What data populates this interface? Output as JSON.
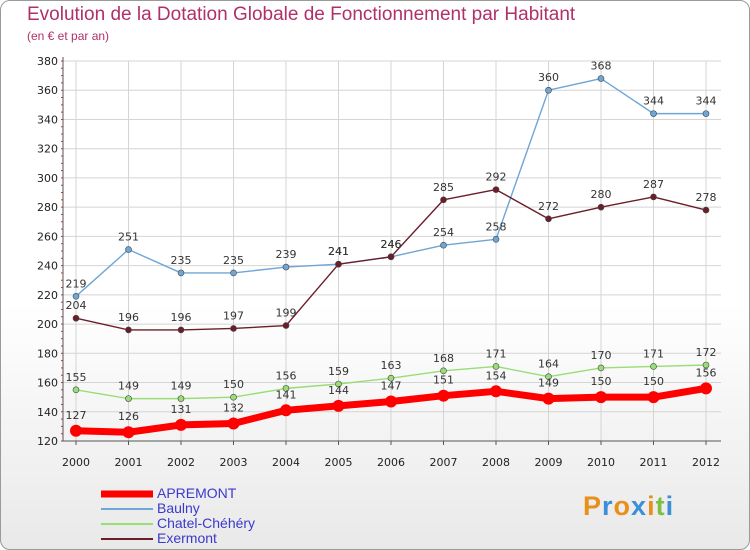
{
  "header": {
    "title": "Evolution de la Dotation Globale de Fonctionnement par Habitant",
    "subtitle": "(en € et par an)"
  },
  "logo": {
    "text": "Proxiti"
  },
  "chart_data": {
    "type": "line",
    "title": "Evolution de la Dotation Globale de Fonctionnement par Habitant",
    "subtitle": "(en € et par an)",
    "xlabel": "",
    "ylabel": "",
    "x": [
      "2000",
      "2001",
      "2002",
      "2003",
      "2004",
      "2005",
      "2006",
      "2007",
      "2008",
      "2009",
      "2010",
      "2011",
      "2012"
    ],
    "ylim": [
      120,
      380
    ],
    "yticks": [
      "120",
      "140",
      "160",
      "180",
      "200",
      "220",
      "240",
      "260",
      "280",
      "300",
      "320",
      "340",
      "360",
      "380"
    ],
    "grid": true,
    "legend_position": "bottom-left",
    "series": [
      {
        "name": "APREMONT",
        "color": "#ff0000",
        "values": [
          127,
          126,
          131,
          132,
          141,
          144,
          147,
          151,
          154,
          149,
          150,
          150,
          156
        ]
      },
      {
        "name": "Baulny",
        "color": "#6ea6d6",
        "values": [
          219,
          251,
          235,
          235,
          239,
          241,
          246,
          254,
          258,
          360,
          368,
          344,
          344
        ]
      },
      {
        "name": "Chatel-Chéhéry",
        "color": "#99dd77",
        "values": [
          155,
          149,
          149,
          150,
          156,
          159,
          163,
          168,
          171,
          164,
          170,
          171,
          172
        ]
      },
      {
        "name": "Exermont",
        "color": "#6b1e2a",
        "values": [
          204,
          196,
          196,
          197,
          199,
          241,
          246,
          285,
          292,
          272,
          280,
          287,
          278
        ]
      }
    ]
  }
}
